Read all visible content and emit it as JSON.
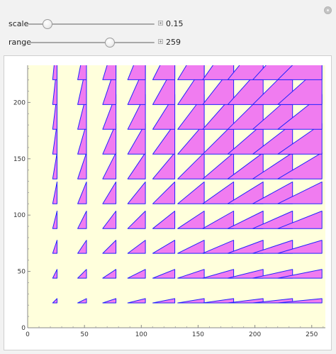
{
  "controls": {
    "gear_icon": "gear-icon",
    "sliders": [
      {
        "label": "scale",
        "value": "0.15",
        "min": 0,
        "max": 1,
        "current": 0.15
      },
      {
        "label": "range",
        "value": "259",
        "min": 0,
        "max": 400,
        "current": 259
      }
    ]
  },
  "chart_data": {
    "type": "scatter",
    "title": "",
    "xlabel": "",
    "ylabel": "",
    "xlim": [
      0,
      262
    ],
    "ylim": [
      0,
      233
    ],
    "x_ticks": [
      0,
      50,
      100,
      150,
      200,
      250
    ],
    "y_ticks": [
      0,
      50,
      100,
      150,
      200
    ],
    "colors": {
      "background": "#ffffdc",
      "fill": "#f07cf0",
      "stroke": "#2222ff"
    },
    "grid_step": 25.9,
    "scale": 0.15,
    "grid_points": [
      1,
      2,
      3,
      4,
      5,
      6,
      7,
      8,
      9,
      10
    ],
    "marker": "right-triangle with legs proportional to scale times grid position"
  }
}
